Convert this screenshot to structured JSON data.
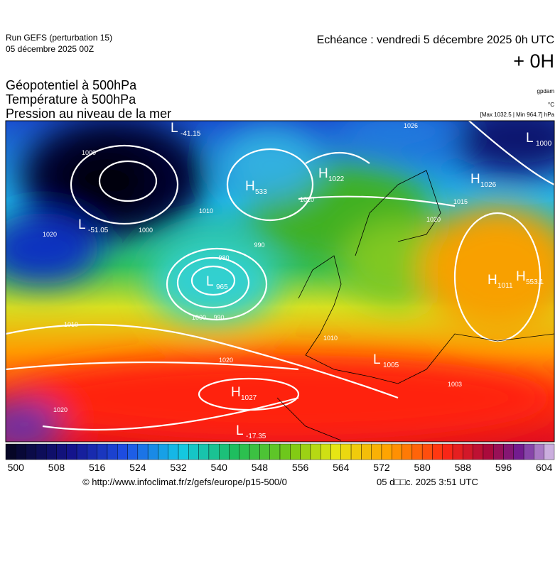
{
  "header": {
    "run": "Run GEFS (perturbation 15)",
    "date": "05 décembre 2025 00Z",
    "echeance": "Echéance : vendredi 5 décembre 2025 0h UTC",
    "offset": "+ 0H",
    "fields": [
      "Géopotentiel à 500hPa",
      "Température à 500hPa",
      "Pression au niveau de la mer"
    ],
    "units": [
      "gpdam",
      "°C",
      "[Max 1032.5 | Min 964.7] hPa"
    ]
  },
  "map": {
    "centers": [
      {
        "letter": "H",
        "value": "1022"
      },
      {
        "letter": "H",
        "value": "1026"
      },
      {
        "letter": "L",
        "value": "1000"
      },
      {
        "letter": "H",
        "value": "1027"
      },
      {
        "letter": "L",
        "value": "-17.35"
      },
      {
        "letter": "H",
        "value": "553.1"
      },
      {
        "letter": "H",
        "value": "1011"
      },
      {
        "letter": "L",
        "value": "-41.15"
      },
      {
        "letter": "L",
        "value": "1005"
      },
      {
        "letter": "L",
        "value": "965"
      },
      {
        "letter": "H",
        "value": "533"
      },
      {
        "letter": "L",
        "value": "-51.05"
      }
    ],
    "contour_labels": [
      "1000",
      "1000",
      "1010",
      "1010",
      "1010",
      "1010",
      "1020",
      "1020",
      "1020",
      "1020",
      "990",
      "990",
      "980",
      "1015",
      "1026",
      "1000",
      "1003"
    ]
  },
  "colorbar": {
    "range": [
      498,
      606
    ],
    "ticks": [
      500,
      508,
      516,
      524,
      532,
      540,
      548,
      556,
      564,
      572,
      580,
      588,
      596,
      604
    ]
  },
  "footer": {
    "url": "© http://www.infoclimat.fr/z/gefs/europe/p15-500/0",
    "time": "05 d□□c. 2025  3:51 UTC"
  }
}
